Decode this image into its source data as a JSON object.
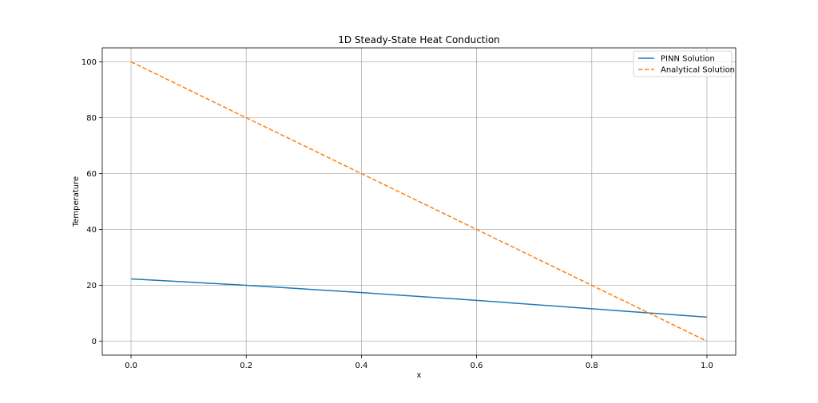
{
  "chart_data": {
    "type": "line",
    "title": "1D Steady-State Heat Conduction",
    "xlabel": "x",
    "ylabel": "Temperature",
    "xlim": [
      -0.05,
      1.05
    ],
    "ylim": [
      -5,
      105
    ],
    "xticks": [
      "0.0",
      "0.2",
      "0.4",
      "0.6",
      "0.8",
      "1.0"
    ],
    "xtick_values": [
      0.0,
      0.2,
      0.4,
      0.6,
      0.8,
      1.0
    ],
    "yticks": [
      "0",
      "20",
      "40",
      "60",
      "80",
      "100"
    ],
    "ytick_values": [
      0,
      20,
      40,
      60,
      80,
      100
    ],
    "grid": true,
    "legend_position": "top-right",
    "series": [
      {
        "name": "PINN Solution",
        "color": "#1f77b4",
        "style": "solid",
        "x": [
          0.0,
          0.2,
          0.4,
          0.6,
          0.8,
          1.0
        ],
        "y": [
          22.3,
          20.0,
          17.4,
          14.6,
          11.6,
          8.6
        ]
      },
      {
        "name": "Analytical Solution",
        "color": "#ff7f0e",
        "style": "dashed",
        "x": [
          0.0,
          0.2,
          0.4,
          0.6,
          0.8,
          1.0
        ],
        "y": [
          100,
          80,
          60,
          40,
          20,
          0
        ]
      }
    ]
  }
}
